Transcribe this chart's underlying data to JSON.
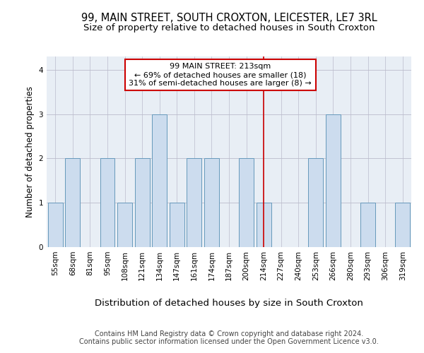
{
  "title1": "99, MAIN STREET, SOUTH CROXTON, LEICESTER, LE7 3RL",
  "title2": "Size of property relative to detached houses in South Croxton",
  "xlabel": "Distribution of detached houses by size in South Croxton",
  "ylabel": "Number of detached properties",
  "categories": [
    "55sqm",
    "68sqm",
    "81sqm",
    "95sqm",
    "108sqm",
    "121sqm",
    "134sqm",
    "147sqm",
    "161sqm",
    "174sqm",
    "187sqm",
    "200sqm",
    "214sqm",
    "227sqm",
    "240sqm",
    "253sqm",
    "266sqm",
    "280sqm",
    "293sqm",
    "306sqm",
    "319sqm"
  ],
  "values": [
    1,
    2,
    0,
    2,
    1,
    2,
    3,
    1,
    2,
    2,
    0,
    2,
    1,
    0,
    0,
    2,
    3,
    0,
    1,
    0,
    1
  ],
  "bar_color": "#ccdcee",
  "bar_edge_color": "#6699bb",
  "vline_index": 12,
  "vline_color": "#cc0000",
  "annotation_text": "99 MAIN STREET: 213sqm\n← 69% of detached houses are smaller (18)\n31% of semi-detached houses are larger (8) →",
  "annotation_box_color": "#ffffff",
  "annotation_box_edge": "#cc0000",
  "ylim": [
    0,
    4.3
  ],
  "yticks": [
    0,
    1,
    2,
    3,
    4
  ],
  "background_color": "#e8eef5",
  "grid_color": "#bbbbcc",
  "footer": "Contains HM Land Registry data © Crown copyright and database right 2024.\nContains public sector information licensed under the Open Government Licence v3.0.",
  "title1_fontsize": 10.5,
  "title2_fontsize": 9.5,
  "xlabel_fontsize": 9.5,
  "ylabel_fontsize": 8.5,
  "tick_fontsize": 7.5,
  "annotation_fontsize": 8,
  "footer_fontsize": 7
}
